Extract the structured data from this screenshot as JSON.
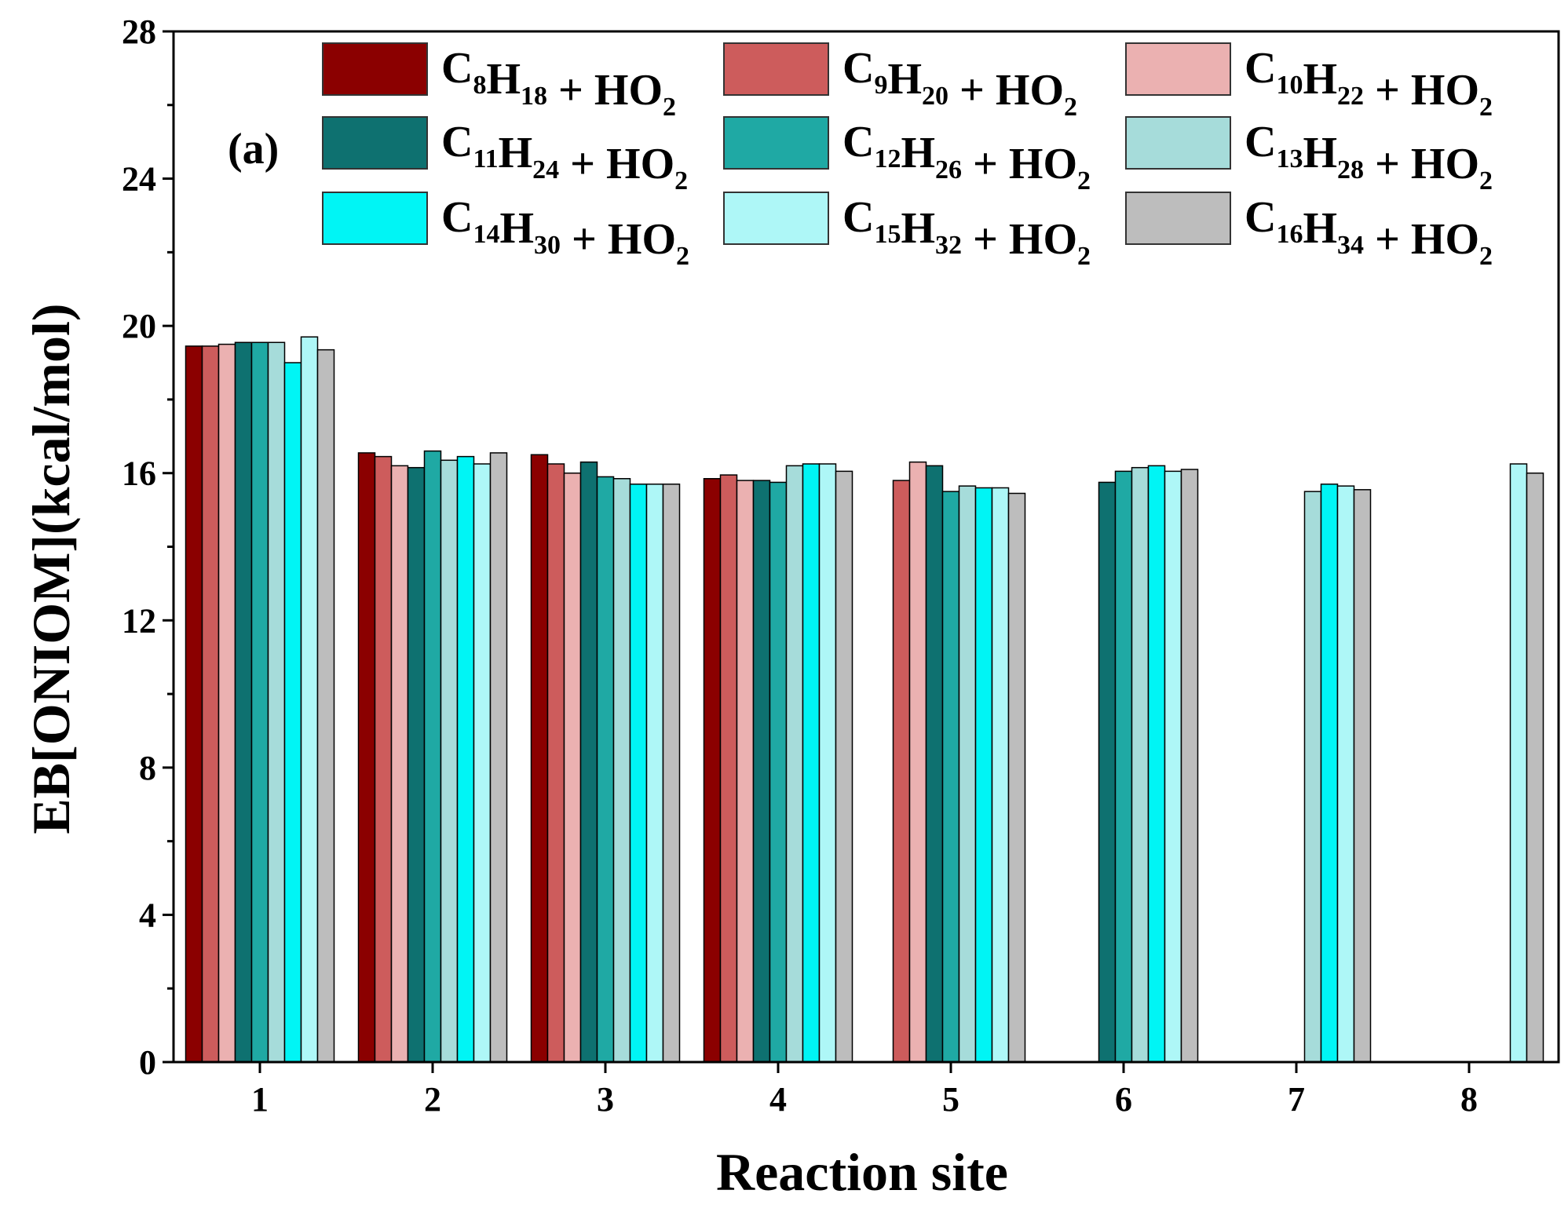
{
  "chart_data": {
    "type": "bar",
    "panel_label": "(a)",
    "xlabel": "Reaction site",
    "ylabel": "EB[ONIOM](kcal/mol)",
    "ylim": [
      0,
      28
    ],
    "yticks": [
      0,
      4,
      8,
      12,
      16,
      20,
      24,
      28
    ],
    "categories": [
      "1",
      "2",
      "3",
      "4",
      "5",
      "6",
      "7",
      "8"
    ],
    "legend_position": "top-right",
    "series": [
      {
        "name": "C8H18 + HO2",
        "label_parts": [
          {
            "t": "C",
            "sub": false
          },
          {
            "t": "8",
            "sub": true
          },
          {
            "t": "H",
            "sub": false
          },
          {
            "t": "18",
            "sub": true
          },
          {
            "t": " + HO",
            "sub": false
          },
          {
            "t": "2",
            "sub": true
          }
        ],
        "color": "#8B0000",
        "values": [
          19.45,
          16.55,
          16.5,
          15.85,
          null,
          null,
          null,
          null
        ]
      },
      {
        "name": "C9H20 + HO2",
        "label_parts": [
          {
            "t": "C",
            "sub": false
          },
          {
            "t": "9",
            "sub": true
          },
          {
            "t": "H",
            "sub": false
          },
          {
            "t": "20",
            "sub": true
          },
          {
            "t": " + HO",
            "sub": false
          },
          {
            "t": "2",
            "sub": true
          }
        ],
        "color": "#CD5C5C",
        "values": [
          19.45,
          16.45,
          16.25,
          15.95,
          15.8,
          null,
          null,
          null
        ]
      },
      {
        "name": "C10H22 + HO2",
        "label_parts": [
          {
            "t": "C",
            "sub": false
          },
          {
            "t": "10",
            "sub": true
          },
          {
            "t": "H",
            "sub": false
          },
          {
            "t": "22",
            "sub": true
          },
          {
            "t": " + HO",
            "sub": false
          },
          {
            "t": "2",
            "sub": true
          }
        ],
        "color": "#EBB1B1",
        "values": [
          19.5,
          16.2,
          16.0,
          15.8,
          16.3,
          null,
          null,
          null
        ]
      },
      {
        "name": "C11H24 + HO2",
        "label_parts": [
          {
            "t": "C",
            "sub": false
          },
          {
            "t": "11",
            "sub": true
          },
          {
            "t": "H",
            "sub": false
          },
          {
            "t": "24",
            "sub": true
          },
          {
            "t": " + HO",
            "sub": false
          },
          {
            "t": "2",
            "sub": true
          }
        ],
        "color": "#0E7170",
        "values": [
          19.55,
          16.15,
          16.3,
          15.8,
          16.2,
          15.75,
          null,
          null
        ]
      },
      {
        "name": "C12H26 + HO2",
        "label_parts": [
          {
            "t": "C",
            "sub": false
          },
          {
            "t": "12",
            "sub": true
          },
          {
            "t": "H",
            "sub": false
          },
          {
            "t": "26",
            "sub": true
          },
          {
            "t": " + HO",
            "sub": false
          },
          {
            "t": "2",
            "sub": true
          }
        ],
        "color": "#1FA9A4",
        "values": [
          19.55,
          16.6,
          15.9,
          15.75,
          15.5,
          16.05,
          null,
          null
        ]
      },
      {
        "name": "C13H28 + HO2",
        "label_parts": [
          {
            "t": "C",
            "sub": false
          },
          {
            "t": "13",
            "sub": true
          },
          {
            "t": "H",
            "sub": false
          },
          {
            "t": "28",
            "sub": true
          },
          {
            "t": " + HO",
            "sub": false
          },
          {
            "t": "2",
            "sub": true
          }
        ],
        "color": "#A6DCDA",
        "values": [
          19.55,
          16.35,
          15.85,
          16.2,
          15.65,
          16.15,
          15.5,
          null
        ]
      },
      {
        "name": "C14H30 + HO2",
        "label_parts": [
          {
            "t": "C",
            "sub": false
          },
          {
            "t": "14",
            "sub": true
          },
          {
            "t": "H",
            "sub": false
          },
          {
            "t": "30",
            "sub": true
          },
          {
            "t": " + HO",
            "sub": false
          },
          {
            "t": "2",
            "sub": true
          }
        ],
        "color": "#00F5F5",
        "values": [
          19.0,
          16.45,
          15.7,
          16.25,
          15.6,
          16.2,
          15.7,
          null
        ]
      },
      {
        "name": "C15H32 + HO2",
        "label_parts": [
          {
            "t": "C",
            "sub": false
          },
          {
            "t": "15",
            "sub": true
          },
          {
            "t": "H",
            "sub": false
          },
          {
            "t": "32",
            "sub": true
          },
          {
            "t": " + HO",
            "sub": false
          },
          {
            "t": "2",
            "sub": true
          }
        ],
        "color": "#AEF7F7",
        "values": [
          19.7,
          16.25,
          15.7,
          16.25,
          15.6,
          16.05,
          15.65,
          16.25
        ]
      },
      {
        "name": "C16H34 + HO2",
        "label_parts": [
          {
            "t": "C",
            "sub": false
          },
          {
            "t": "16",
            "sub": true
          },
          {
            "t": "H",
            "sub": false
          },
          {
            "t": "34",
            "sub": true
          },
          {
            "t": " + HO",
            "sub": false
          },
          {
            "t": "2",
            "sub": true
          }
        ],
        "color": "#BDBDBD",
        "values": [
          19.35,
          16.55,
          15.7,
          16.05,
          15.45,
          16.1,
          15.55,
          16.0
        ]
      }
    ]
  }
}
